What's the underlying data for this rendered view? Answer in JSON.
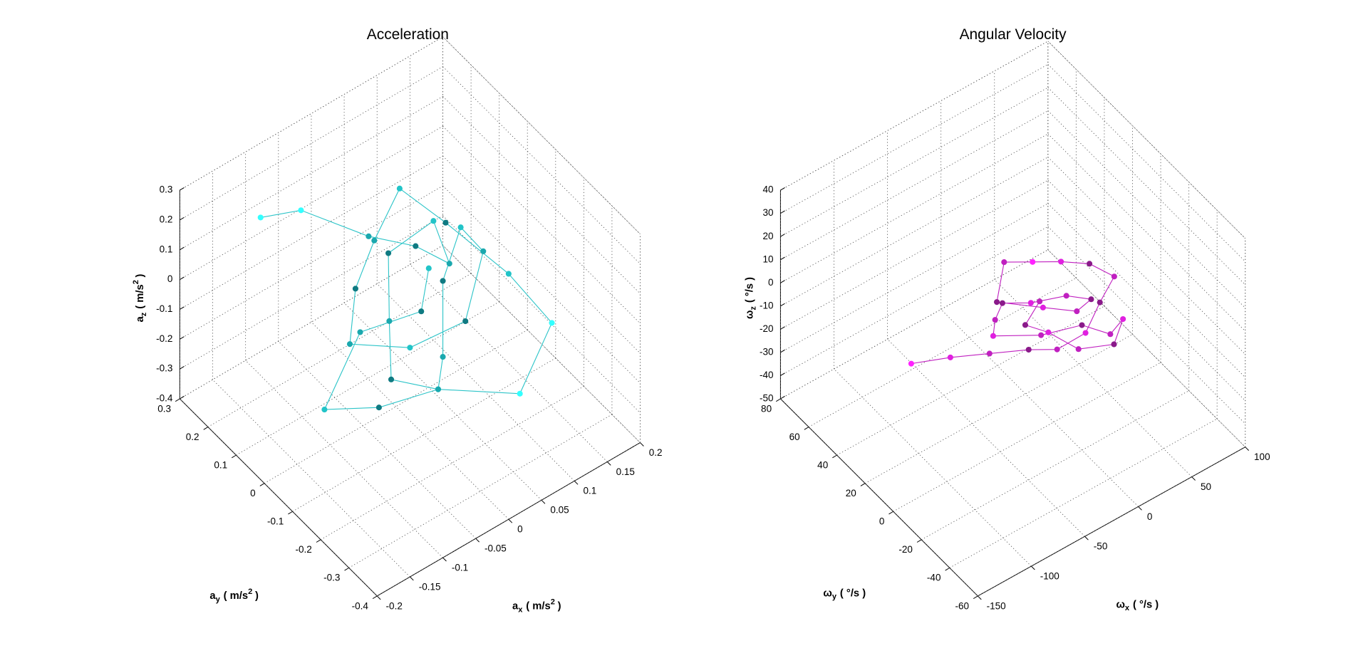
{
  "chart_data": [
    {
      "type": "scatter3d",
      "title": "Acceleration",
      "xlabel": {
        "symbol": "a",
        "subscript": "x",
        "unit": "( m/s",
        "power": "2",
        "close": ")"
      },
      "ylabel": {
        "symbol": "a",
        "subscript": "y",
        "unit": "( m/s",
        "power": "2",
        "close": ")"
      },
      "zlabel": {
        "symbol": "a",
        "subscript": "z",
        "unit": "( m/s",
        "power": "2",
        "close": ")"
      },
      "xlim": [
        -0.2,
        0.2
      ],
      "ylim": [
        -0.4,
        0.3
      ],
      "zlim": [
        -0.4,
        0.3
      ],
      "xticks": [
        -0.2,
        -0.15,
        -0.1,
        -0.05,
        0,
        0.05,
        0.1,
        0.15,
        0.2
      ],
      "yticks": [
        -0.4,
        -0.3,
        -0.2,
        -0.1,
        0,
        0.1,
        0.2,
        0.3
      ],
      "zticks": [
        -0.4,
        -0.3,
        -0.2,
        -0.1,
        0,
        0.1,
        0.2,
        0.3
      ],
      "grid": true,
      "line_color": "#2cc4c8",
      "x": [
        -0.12,
        -0.08,
        -0.02,
        0.03,
        0.06,
        0.1,
        0.04,
        -0.01,
        -0.05,
        0.0,
        0.05,
        0.08,
        0.12,
        0.09,
        0.02,
        -0.03,
        -0.07,
        -0.04,
        0.01,
        0.07,
        0.11,
        0.15,
        0.13,
        0.06,
        0.0,
        -0.06,
        -0.1,
        -0.02,
        0.03,
        0.05
      ],
      "y": [
        0.2,
        0.15,
        0.05,
        0.0,
        -0.05,
        0.1,
        0.12,
        0.0,
        -0.1,
        -0.15,
        -0.05,
        0.02,
        0.05,
        -0.1,
        -0.2,
        -0.12,
        0.0,
        0.05,
        0.1,
        0.15,
        0.08,
        -0.05,
        -0.25,
        -0.3,
        -0.15,
        -0.08,
        0.02,
        0.08,
        -0.02,
        0.0
      ],
      "z": [
        0.2,
        0.22,
        0.15,
        0.1,
        0.05,
        0.0,
        -0.05,
        -0.1,
        -0.15,
        -0.2,
        -0.25,
        -0.1,
        0.0,
        0.1,
        0.05,
        -0.05,
        -0.1,
        0.0,
        0.05,
        0.1,
        0.0,
        -0.1,
        -0.05,
        -0.15,
        -0.2,
        -0.25,
        -0.3,
        -0.2,
        -0.1,
        0.0
      ],
      "colors": [
        "#33ffff",
        "#33ffff",
        "#1aa8ae",
        "#0f7a82",
        "#1aa8ae",
        "#22c4c8",
        "#0f7a82",
        "#1aa8ae",
        "#0f7a82",
        "#22c4c8",
        "#1aa8ae",
        "#0f7a82",
        "#22c4c8",
        "#1aa8ae",
        "#0f7a82",
        "#22c4c8",
        "#1aa8ae",
        "#0f7a82",
        "#1aa8ae",
        "#22c4c8",
        "#0f7a82",
        "#22c4c8",
        "#33ffff",
        "#33ffff",
        "#1aa8ae",
        "#0f7a82",
        "#22c4c8",
        "#1aa8ae",
        "#0f7a82",
        "#22c4c8"
      ]
    },
    {
      "type": "scatter3d",
      "title": "Angular Velocity",
      "xlabel": {
        "symbol": "ω",
        "subscript": "x",
        "unit": "( °/s )"
      },
      "ylabel": {
        "symbol": "ω",
        "subscript": "y",
        "unit": "( °/s )"
      },
      "zlabel": {
        "symbol": "ω",
        "subscript": "z",
        "unit": "( °/s )"
      },
      "xlim": [
        -150,
        100
      ],
      "ylim": [
        -60,
        80
      ],
      "zlim": [
        -50,
        40
      ],
      "xticks": [
        -150,
        -100,
        -50,
        0,
        50,
        100
      ],
      "yticks": [
        -60,
        -40,
        -20,
        0,
        20,
        40,
        60,
        80
      ],
      "zticks": [
        -50,
        -40,
        -30,
        -20,
        -10,
        0,
        10,
        20,
        30,
        40
      ],
      "grid": true,
      "line_color": "#c020c0",
      "x": [
        -120,
        -90,
        -60,
        -30,
        -10,
        10,
        30,
        50,
        40,
        20,
        0,
        -20,
        -40,
        -10,
        15,
        35,
        25,
        5,
        -15,
        -35,
        -50,
        -25,
        0,
        20,
        45,
        30,
        10,
        -5,
        -20,
        0
      ],
      "y": [
        10,
        5,
        0,
        -5,
        -10,
        -15,
        -10,
        -5,
        5,
        10,
        15,
        20,
        10,
        0,
        -5,
        0,
        10,
        20,
        25,
        15,
        5,
        -10,
        -20,
        -25,
        -15,
        -20,
        -10,
        0,
        5,
        10
      ],
      "z": [
        0,
        -2,
        -5,
        -8,
        -10,
        -5,
        0,
        3,
        5,
        8,
        10,
        12,
        6,
        2,
        -3,
        -6,
        -8,
        -12,
        -10,
        -6,
        -3,
        0,
        4,
        -2,
        -8,
        -12,
        -15,
        -10,
        -6,
        -4
      ],
      "colors": [
        "#ff22ff",
        "#e020e0",
        "#c020c0",
        "#8a1a8a",
        "#c020c0",
        "#e020e0",
        "#8a1a8a",
        "#c020c0",
        "#8a1a8a",
        "#e020e0",
        "#ff22ff",
        "#c020c0",
        "#8a1a8a",
        "#e020e0",
        "#c020c0",
        "#8a1a8a",
        "#c020c0",
        "#e020e0",
        "#8a1a8a",
        "#c020c0",
        "#e020e0",
        "#c020c0",
        "#8a1a8a",
        "#c020c0",
        "#e020e0",
        "#8a1a8a",
        "#c020c0",
        "#e020e0",
        "#8a1a8a",
        "#c020c0"
      ]
    }
  ]
}
